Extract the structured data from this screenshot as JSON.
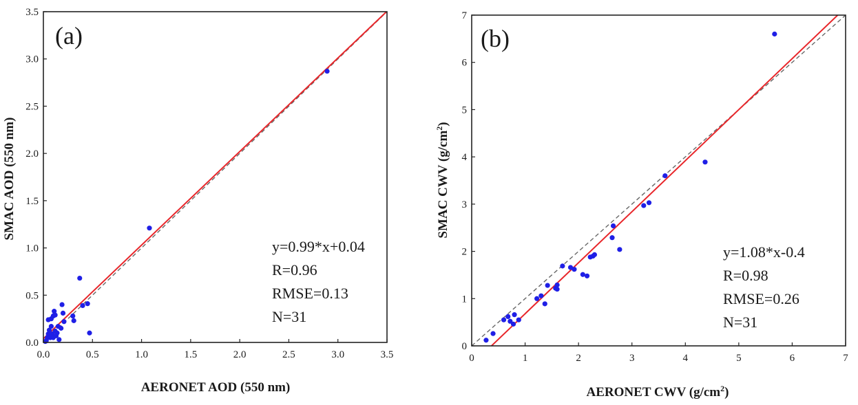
{
  "chart_data": [
    {
      "type": "scatter",
      "panel_label": "(a)",
      "xlabel": "AERONET AOD (550 nm)",
      "ylabel": "SMAC AOD (550 nm)",
      "xlim": [
        0,
        3.5
      ],
      "ylim": [
        0,
        3.5
      ],
      "x_ticks": [
        "0.0",
        "0.5",
        "1.0",
        "1.5",
        "2.0",
        "2.5",
        "3.0",
        "3.5"
      ],
      "y_ticks": [
        "0.0",
        "0.5",
        "1.0",
        "1.5",
        "2.0",
        "2.5",
        "3.0",
        "3.5"
      ],
      "x_tick_values": [
        0,
        0.5,
        1.0,
        1.5,
        2.0,
        2.5,
        3.0,
        3.5
      ],
      "y_tick_values": [
        0,
        0.5,
        1.0,
        1.5,
        2.0,
        2.5,
        3.0,
        3.5
      ],
      "grid": false,
      "stats": [
        "y=0.99*x+0.04",
        "R=0.96",
        "RMSE=0.13",
        "N=31"
      ],
      "fit_line": {
        "slope": 0.99,
        "intercept": 0.04,
        "color": "#e8262a"
      },
      "reference_line": {
        "slope": 1,
        "intercept": 0,
        "style": "dashed",
        "color": "#666666"
      },
      "point_color": "#1f1fe6",
      "points": [
        {
          "x": 0.03,
          "y": 0.02
        },
        {
          "x": 0.04,
          "y": 0.05
        },
        {
          "x": 0.05,
          "y": 0.09
        },
        {
          "x": 0.06,
          "y": 0.13
        },
        {
          "x": 0.05,
          "y": 0.24
        },
        {
          "x": 0.08,
          "y": 0.25
        },
        {
          "x": 0.07,
          "y": 0.05
        },
        {
          "x": 0.09,
          "y": 0.09
        },
        {
          "x": 0.1,
          "y": 0.28
        },
        {
          "x": 0.11,
          "y": 0.33
        },
        {
          "x": 0.12,
          "y": 0.29
        },
        {
          "x": 0.1,
          "y": 0.05
        },
        {
          "x": 0.13,
          "y": 0.07
        },
        {
          "x": 0.14,
          "y": 0.1
        },
        {
          "x": 0.16,
          "y": 0.03
        },
        {
          "x": 0.18,
          "y": 0.15
        },
        {
          "x": 0.19,
          "y": 0.4
        },
        {
          "x": 0.2,
          "y": 0.31
        },
        {
          "x": 0.21,
          "y": 0.22
        },
        {
          "x": 0.3,
          "y": 0.28
        },
        {
          "x": 0.31,
          "y": 0.23
        },
        {
          "x": 0.37,
          "y": 0.68
        },
        {
          "x": 0.4,
          "y": 0.39
        },
        {
          "x": 0.45,
          "y": 0.41
        },
        {
          "x": 0.47,
          "y": 0.1
        },
        {
          "x": 1.08,
          "y": 1.21
        },
        {
          "x": 2.89,
          "y": 2.87
        },
        {
          "x": 0.08,
          "y": 0.17
        },
        {
          "x": 0.12,
          "y": 0.12
        },
        {
          "x": 0.15,
          "y": 0.17
        },
        {
          "x": 0.02,
          "y": 0.01
        }
      ]
    },
    {
      "type": "scatter",
      "panel_label": "(b)",
      "xlabel": "AERONET CWV (g/cm",
      "xlabel_sup": "2",
      "xlabel_end": ")",
      "ylabel": "SMAC CWV (g/cm",
      "ylabel_sup": "2",
      "ylabel_end": ")",
      "xlim": [
        0,
        7
      ],
      "ylim": [
        0,
        7
      ],
      "x_ticks": [
        "0",
        "1",
        "2",
        "3",
        "4",
        "5",
        "6",
        "7"
      ],
      "y_ticks": [
        "0",
        "1",
        "2",
        "3",
        "4",
        "5",
        "6",
        "7"
      ],
      "x_tick_values": [
        0,
        1,
        2,
        3,
        4,
        5,
        6,
        7
      ],
      "y_tick_values": [
        0,
        1,
        2,
        3,
        4,
        5,
        6,
        7
      ],
      "grid": false,
      "stats": [
        "y=1.08*x-0.4",
        "R=0.98",
        "RMSE=0.26",
        "N=31"
      ],
      "fit_line": {
        "slope": 1.08,
        "intercept": -0.4,
        "color": "#e8262a"
      },
      "reference_line": {
        "slope": 1,
        "intercept": 0,
        "style": "dashed",
        "color": "#666666"
      },
      "point_color": "#1f1fe6",
      "points": [
        {
          "x": 0.27,
          "y": 0.12
        },
        {
          "x": 0.4,
          "y": 0.26
        },
        {
          "x": 0.6,
          "y": 0.55
        },
        {
          "x": 0.68,
          "y": 0.62
        },
        {
          "x": 0.72,
          "y": 0.52
        },
        {
          "x": 0.78,
          "y": 0.46
        },
        {
          "x": 0.8,
          "y": 0.66
        },
        {
          "x": 0.88,
          "y": 0.55
        },
        {
          "x": 1.22,
          "y": 1.0
        },
        {
          "x": 1.3,
          "y": 1.06
        },
        {
          "x": 1.37,
          "y": 0.89
        },
        {
          "x": 1.42,
          "y": 1.28
        },
        {
          "x": 1.57,
          "y": 1.22
        },
        {
          "x": 1.6,
          "y": 1.29
        },
        {
          "x": 1.6,
          "y": 1.2
        },
        {
          "x": 1.7,
          "y": 1.69
        },
        {
          "x": 1.85,
          "y": 1.66
        },
        {
          "x": 2.08,
          "y": 1.51
        },
        {
          "x": 2.16,
          "y": 1.48
        },
        {
          "x": 2.22,
          "y": 1.88
        },
        {
          "x": 2.27,
          "y": 1.9
        },
        {
          "x": 2.3,
          "y": 1.93
        },
        {
          "x": 2.63,
          "y": 2.29
        },
        {
          "x": 2.65,
          "y": 2.54
        },
        {
          "x": 2.77,
          "y": 2.04
        },
        {
          "x": 3.22,
          "y": 2.97
        },
        {
          "x": 3.32,
          "y": 3.03
        },
        {
          "x": 3.62,
          "y": 3.6
        },
        {
          "x": 4.37,
          "y": 3.89
        },
        {
          "x": 5.67,
          "y": 6.6
        },
        {
          "x": 1.92,
          "y": 1.62
        }
      ]
    }
  ]
}
